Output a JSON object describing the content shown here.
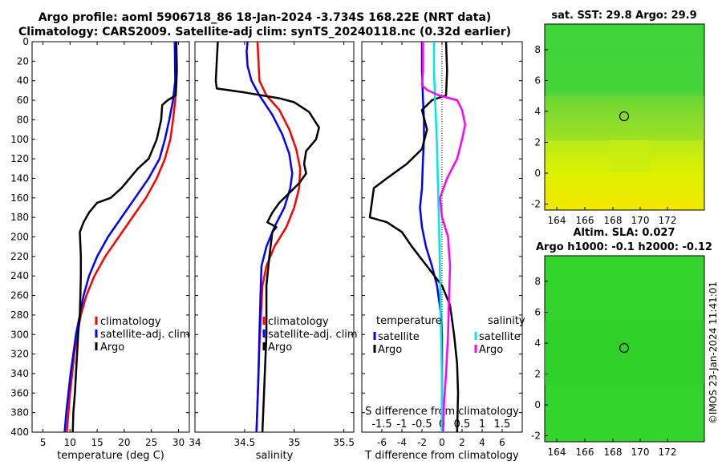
{
  "title_line1": "Argo profile: aoml 5906718_86 18-Jan-2024 -3.734S 168.22E (NRT data)",
  "title_line2": "Climatology: CARS2009. Satellite-adj clim: synTS_20240118.nc (0.32d earlier)",
  "chart_data": [
    {
      "id": "temperature",
      "type": "line",
      "xlabel": "temperature (deg C)",
      "ylabel": "",
      "xlim": [
        3,
        32
      ],
      "ylim": [
        400,
        0
      ],
      "xticks": [
        5,
        10,
        15,
        20,
        25,
        30
      ],
      "yticks": [
        0,
        20,
        40,
        60,
        80,
        100,
        120,
        140,
        160,
        180,
        200,
        220,
        240,
        260,
        280,
        300,
        320,
        340,
        360,
        380,
        400
      ],
      "legend": [
        "climatology",
        "satellite-adj. clim",
        "Argo"
      ],
      "series": [
        {
          "name": "climatology",
          "color": "#ff0000",
          "points": [
            [
              29.5,
              0
            ],
            [
              29.6,
              40
            ],
            [
              29.4,
              60
            ],
            [
              29.0,
              80
            ],
            [
              28.5,
              100
            ],
            [
              27.5,
              120
            ],
            [
              26.0,
              140
            ],
            [
              24.0,
              160
            ],
            [
              21.5,
              180
            ],
            [
              19.0,
              200
            ],
            [
              16.5,
              220
            ],
            [
              14.5,
              240
            ],
            [
              13.0,
              260
            ],
            [
              12.0,
              280
            ],
            [
              11.3,
              300
            ],
            [
              10.8,
              320
            ],
            [
              10.4,
              340
            ],
            [
              10.0,
              360
            ],
            [
              9.7,
              380
            ],
            [
              9.4,
              400
            ]
          ]
        },
        {
          "name": "satellite-adj. clim",
          "color": "#0000ff",
          "points": [
            [
              29.3,
              0
            ],
            [
              29.4,
              40
            ],
            [
              29.0,
              60
            ],
            [
              28.3,
              80
            ],
            [
              27.5,
              100
            ],
            [
              26.5,
              120
            ],
            [
              24.5,
              140
            ],
            [
              22.0,
              160
            ],
            [
              19.5,
              180
            ],
            [
              17.0,
              200
            ],
            [
              15.0,
              220
            ],
            [
              13.5,
              240
            ],
            [
              12.5,
              260
            ],
            [
              11.8,
              280
            ],
            [
              11.1,
              300
            ],
            [
              10.6,
              320
            ],
            [
              10.1,
              340
            ],
            [
              9.7,
              360
            ],
            [
              9.3,
              380
            ],
            [
              9.0,
              400
            ]
          ]
        },
        {
          "name": "Argo",
          "color": "#000000",
          "points": [
            [
              29.6,
              0
            ],
            [
              29.7,
              30
            ],
            [
              29.5,
              55
            ],
            [
              28.0,
              60
            ],
            [
              27.0,
              65
            ],
            [
              26.8,
              80
            ],
            [
              26.0,
              100
            ],
            [
              24.5,
              120
            ],
            [
              22.5,
              130
            ],
            [
              21.0,
              140
            ],
            [
              19.5,
              150
            ],
            [
              17.5,
              160
            ],
            [
              15.0,
              165
            ],
            [
              13.5,
              175
            ],
            [
              12.5,
              185
            ],
            [
              11.8,
              195
            ],
            [
              12.0,
              220
            ],
            [
              12.0,
              240
            ],
            [
              11.9,
              260
            ],
            [
              11.8,
              280
            ],
            [
              11.5,
              300
            ],
            [
              11.3,
              320
            ],
            [
              11.1,
              340
            ],
            [
              10.9,
              360
            ],
            [
              10.6,
              380
            ],
            [
              10.5,
              400
            ]
          ]
        }
      ]
    },
    {
      "id": "salinity",
      "type": "line",
      "xlabel": "salinity",
      "ylabel": "",
      "xlim": [
        34.0,
        35.6
      ],
      "ylim": [
        400,
        0
      ],
      "xticks": [
        34,
        34.5,
        35,
        35.5
      ],
      "yticks": [
        0,
        20,
        40,
        60,
        80,
        100,
        120,
        140,
        160,
        180,
        200,
        220,
        240,
        260,
        280,
        300,
        320,
        340,
        360,
        380,
        400
      ],
      "legend": [
        "climatology",
        "satellite-adj. clim",
        "Argo"
      ],
      "series": [
        {
          "name": "climatology",
          "color": "#ff0000",
          "points": [
            [
              34.63,
              0
            ],
            [
              34.64,
              20
            ],
            [
              34.65,
              40
            ],
            [
              34.72,
              55
            ],
            [
              34.85,
              70
            ],
            [
              34.95,
              90
            ],
            [
              35.02,
              110
            ],
            [
              35.06,
              130
            ],
            [
              35.05,
              150
            ],
            [
              35.0,
              170
            ],
            [
              34.92,
              190
            ],
            [
              34.8,
              210
            ],
            [
              34.72,
              230
            ],
            [
              34.68,
              250
            ],
            [
              34.67,
              270
            ],
            [
              34.66,
              290
            ],
            [
              34.65,
              310
            ],
            [
              34.64,
              340
            ],
            [
              34.63,
              370
            ],
            [
              34.62,
              400
            ]
          ]
        },
        {
          "name": "satellite-adj. clim",
          "color": "#0000ff",
          "points": [
            [
              34.53,
              0
            ],
            [
              34.52,
              10
            ],
            [
              34.53,
              25
            ],
            [
              34.57,
              40
            ],
            [
              34.65,
              55
            ],
            [
              34.78,
              75
            ],
            [
              34.88,
              95
            ],
            [
              34.95,
              115
            ],
            [
              34.98,
              135
            ],
            [
              34.96,
              150
            ],
            [
              34.9,
              170
            ],
            [
              34.8,
              190
            ],
            [
              34.72,
              210
            ],
            [
              34.67,
              230
            ],
            [
              34.66,
              260
            ],
            [
              34.65,
              300
            ],
            [
              34.64,
              340
            ],
            [
              34.63,
              370
            ],
            [
              34.62,
              400
            ]
          ]
        },
        {
          "name": "Argo",
          "color": "#000000",
          "points": [
            [
              34.23,
              0
            ],
            [
              34.22,
              20
            ],
            [
              34.21,
              40
            ],
            [
              34.22,
              48
            ],
            [
              34.5,
              52
            ],
            [
              34.85,
              58
            ],
            [
              35.0,
              62
            ],
            [
              35.15,
              72
            ],
            [
              35.2,
              80
            ],
            [
              35.25,
              88
            ],
            [
              35.22,
              100
            ],
            [
              35.12,
              112
            ],
            [
              35.1,
              125
            ],
            [
              35.12,
              135
            ],
            [
              35.05,
              145
            ],
            [
              34.95,
              155
            ],
            [
              34.85,
              165
            ],
            [
              34.78,
              175
            ],
            [
              34.73,
              185
            ],
            [
              34.82,
              190
            ],
            [
              34.78,
              195
            ],
            [
              34.75,
              220
            ],
            [
              34.72,
              250
            ],
            [
              34.72,
              300
            ],
            [
              34.7,
              350
            ],
            [
              34.68,
              400
            ]
          ]
        }
      ]
    },
    {
      "id": "difference",
      "type": "line",
      "xlabel": "T difference from climatology",
      "xlabel_top": "S difference from climatology",
      "xlim": [
        -8,
        8
      ],
      "ylim": [
        400,
        0
      ],
      "xticks": [
        -6,
        -4,
        -2,
        0,
        2,
        4,
        6
      ],
      "xticks_top_labels": [
        "-1.5",
        "-1",
        "-0.5",
        "0",
        "0.5",
        "1",
        "1.5"
      ],
      "yticks": [
        0,
        20,
        40,
        60,
        80,
        100,
        120,
        140,
        160,
        180,
        200,
        220,
        240,
        260,
        280,
        300,
        320,
        340,
        360,
        380,
        400
      ],
      "legend_left_title": "temperature",
      "legend_right_title": "salinity",
      "legend_left": [
        "satellite",
        "Argo"
      ],
      "legend_right": [
        "satellite",
        "Argo"
      ],
      "series": [
        {
          "name": "T satellite",
          "color": "#0000ff",
          "points": [
            [
              -2.0,
              0
            ],
            [
              -2.0,
              30
            ],
            [
              -1.9,
              60
            ],
            [
              -1.8,
              80
            ],
            [
              -1.8,
              100
            ],
            [
              -1.9,
              120
            ],
            [
              -2.0,
              150
            ],
            [
              -2.2,
              170
            ],
            [
              -2.0,
              190
            ],
            [
              -1.6,
              210
            ],
            [
              -1.0,
              230
            ],
            [
              -0.5,
              250
            ],
            [
              -0.1,
              280
            ],
            [
              0,
              300
            ],
            [
              0,
              340
            ],
            [
              0,
              370
            ],
            [
              0,
              400
            ]
          ]
        },
        {
          "name": "T Argo",
          "color": "#000000",
          "points": [
            [
              0.4,
              0
            ],
            [
              0.5,
              30
            ],
            [
              0.4,
              55
            ],
            [
              -1.0,
              60
            ],
            [
              -2.0,
              70
            ],
            [
              -1.5,
              90
            ],
            [
              -2.0,
              110
            ],
            [
              -3.5,
              125
            ],
            [
              -5.5,
              140
            ],
            [
              -6.8,
              150
            ],
            [
              -7.0,
              165
            ],
            [
              -7.2,
              180
            ],
            [
              -5.5,
              185
            ],
            [
              -4.0,
              195
            ],
            [
              -3.0,
              210
            ],
            [
              -1.5,
              230
            ],
            [
              0.0,
              250
            ],
            [
              0.8,
              270
            ],
            [
              1.2,
              300
            ],
            [
              1.5,
              330
            ],
            [
              1.6,
              360
            ],
            [
              1.5,
              400
            ]
          ]
        },
        {
          "name": "S satellite",
          "color": "#00e5e5",
          "points": [
            [
              -0.8,
              0
            ],
            [
              -0.8,
              30
            ],
            [
              -0.7,
              60
            ],
            [
              -0.6,
              80
            ],
            [
              -0.5,
              110
            ],
            [
              -0.4,
              150
            ],
            [
              -0.3,
              190
            ],
            [
              -0.2,
              240
            ],
            [
              -0.1,
              300
            ],
            [
              0,
              350
            ],
            [
              0,
              400
            ]
          ]
        },
        {
          "name": "S Argo",
          "color": "#ff00ff",
          "points": [
            [
              -1.9,
              0
            ],
            [
              -1.9,
              30
            ],
            [
              -2.0,
              45
            ],
            [
              -1.4,
              50
            ],
            [
              -0.3,
              55
            ],
            [
              1.5,
              60
            ],
            [
              2.0,
              70
            ],
            [
              2.3,
              85
            ],
            [
              2.0,
              100
            ],
            [
              1.5,
              120
            ],
            [
              0.5,
              140
            ],
            [
              -0.2,
              160
            ],
            [
              0.0,
              180
            ],
            [
              0.6,
              200
            ],
            [
              0.8,
              230
            ],
            [
              0.7,
              260
            ],
            [
              0.6,
              300
            ],
            [
              0.4,
              340
            ],
            [
              0.2,
              370
            ],
            [
              0.1,
              400
            ]
          ]
        }
      ]
    }
  ],
  "maps": {
    "sst": {
      "title": "sat. SST: 29.8 Argo: 29.9",
      "xticks": [
        "164",
        "166",
        "168",
        "170",
        "172"
      ],
      "yticks": [
        "8",
        "6",
        "4",
        "2",
        "0",
        "-2"
      ]
    },
    "sla": {
      "title1": "Altim. SLA: 0.027",
      "title2": "Argo h1000: -0.1 h2000: -0.12",
      "xticks": [
        "164",
        "166",
        "168",
        "170",
        "172"
      ],
      "yticks": [
        "8",
        "6",
        "4",
        "2",
        "0",
        "-2"
      ]
    }
  },
  "watermark": "©IMOS 23-Jan-2024 11:41:01",
  "colors": {
    "climatology": "#ff0000",
    "satellite": "#0000ff",
    "argo": "#000000",
    "sat_salinity": "#00e5e5",
    "argo_salinity": "#ff00ff"
  }
}
